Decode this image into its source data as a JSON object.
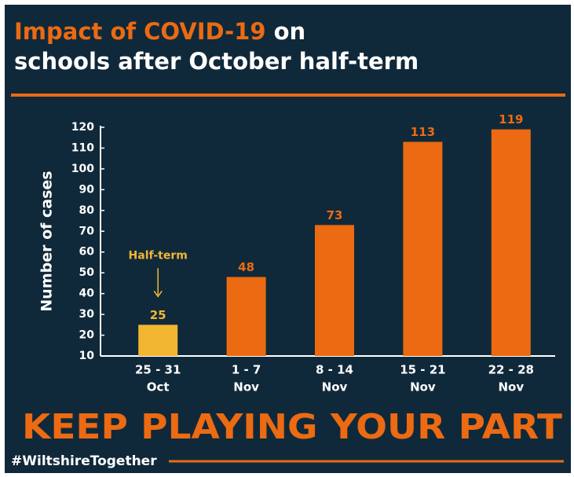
{
  "chart_data": {
    "type": "bar",
    "title": {
      "highlight": "Impact of COVID-19",
      "rest": "on",
      "line2": "schools after October half-term"
    },
    "y_label": "Number of cases",
    "categories": [
      [
        "25 - 31",
        "Oct"
      ],
      [
        "1 - 7",
        "Nov"
      ],
      [
        "8 - 14",
        "Nov"
      ],
      [
        "15 - 21",
        "Nov"
      ],
      [
        "22 - 28",
        "Nov"
      ]
    ],
    "values": [
      25,
      48,
      73,
      113,
      119
    ],
    "colors": [
      "#f2b632",
      "#ec6a12",
      "#ec6a12",
      "#ec6a12",
      "#ec6a12"
    ],
    "ylim": [
      10,
      120
    ],
    "yticks": [
      10,
      20,
      30,
      40,
      50,
      60,
      70,
      80,
      90,
      100,
      110,
      120
    ],
    "annotation": "Half-term",
    "slogan": "KEEP PLAYING YOUR PART",
    "hashtag": "#WiltshireTogether"
  }
}
